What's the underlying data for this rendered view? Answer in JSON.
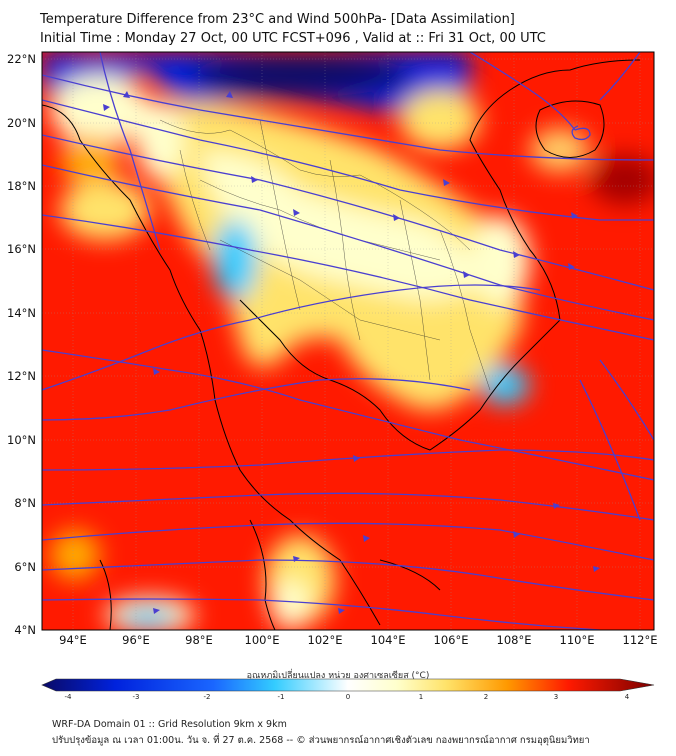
{
  "title_line1": "Temperature Difference from 23°C and Wind 500hPa- [Data Assimilation]",
  "title_line2": "Initial Time : Monday 27 Oct, 00 UTC FCST+096 , Valid at ::  Fri 31 Oct, 00 UTC",
  "lat_labels": [
    "22°N",
    "20°N",
    "18°N",
    "16°N",
    "14°N",
    "12°N",
    "10°N",
    "8°N",
    "6°N",
    "4°N"
  ],
  "lon_labels": [
    "94°E",
    "96°E",
    "98°E",
    "100°E",
    "102°E",
    "104°E",
    "106°E",
    "108°E",
    "110°E",
    "112°E"
  ],
  "colorbar": {
    "label": "อุณหภูมิเปลี่ยนแปลง หน่วย องศาเซลเซียส (°C)",
    "ticks": [
      "-4",
      "-3",
      "-2",
      "-1",
      "0",
      "1",
      "2",
      "3",
      "4"
    ],
    "range": [
      -4,
      4
    ]
  },
  "footer_line1": "WRF-DA Domain 01 :: Grid Resolution 9km x 9km",
  "footer_line2": "ปรับปรุงข้อมูล ณ เวลา 01:00น. วัน จ. ที่ 27 ต.ค. 2568 -- © ส่วนพยากรณ์อากาศเชิงตัวเลข กองพยากรณ์อากาศ กรมอุตุนิยมวิทยา",
  "colors": {
    "warm_max": "#7a0000",
    "warm": "#ff1a00",
    "neutral": "#ffffcc",
    "cool": "#33ccff",
    "cold": "#0022dd",
    "cold_max": "#0a0a66",
    "streamline": "#4a3fd0",
    "coastline": "#000000"
  }
}
